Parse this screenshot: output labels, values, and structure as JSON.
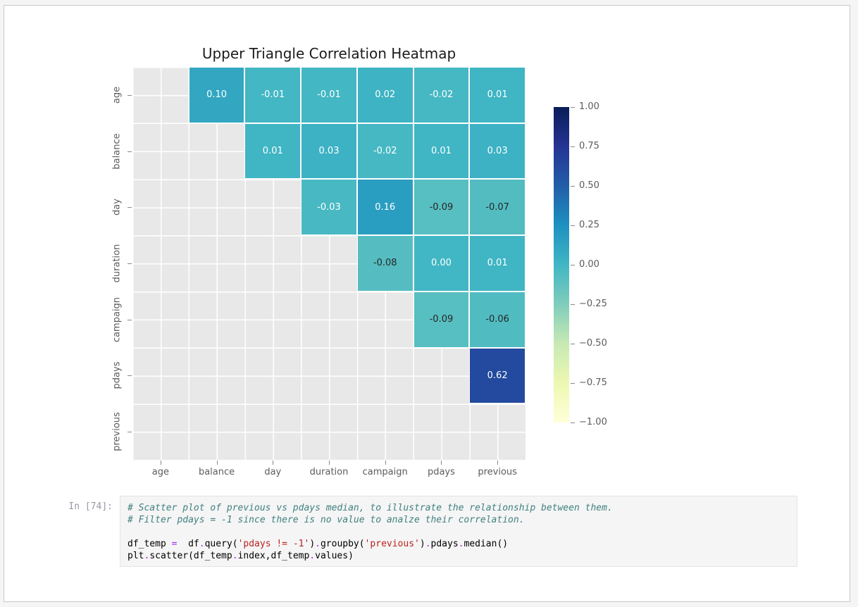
{
  "page": {
    "background": "#f5f5f5",
    "card_background": "#ffffff",
    "card_border": "#c8c8c8"
  },
  "chart_data": {
    "type": "heatmap",
    "title": "Upper Triangle Correlation Heatmap",
    "x_labels": [
      "age",
      "balance",
      "day",
      "duration",
      "campaign",
      "pdays",
      "previous"
    ],
    "y_labels": [
      "age",
      "balance",
      "day",
      "duration",
      "campaign",
      "pdays",
      "previous"
    ],
    "matrix": [
      [
        null,
        0.1,
        -0.01,
        -0.01,
        0.02,
        -0.02,
        0.01
      ],
      [
        null,
        null,
        0.01,
        0.03,
        -0.02,
        0.01,
        0.03
      ],
      [
        null,
        null,
        null,
        -0.03,
        0.16,
        -0.09,
        -0.07
      ],
      [
        null,
        null,
        null,
        null,
        -0.08,
        0.0,
        0.01
      ],
      [
        null,
        null,
        null,
        null,
        null,
        -0.09,
        -0.06
      ],
      [
        null,
        null,
        null,
        null,
        null,
        null,
        0.62
      ],
      [
        null,
        null,
        null,
        null,
        null,
        null,
        null
      ]
    ],
    "vmin": -1.0,
    "vmax": 1.0,
    "colormap_name": "YlGnBu",
    "colormap_anchors": [
      "#ffffd9",
      "#edf8b1",
      "#c7e9b4",
      "#7fcdbb",
      "#41b6c4",
      "#1d91c0",
      "#225ea8",
      "#253494",
      "#081d58"
    ],
    "masked_color": "#e8e8e8",
    "annot_decimals": 2,
    "annot_color_light": "#ffffff",
    "annot_color_dark": "#262626",
    "colorbar_ticks": [
      "1.00",
      "0.75",
      "0.50",
      "0.25",
      "0.00",
      "−0.25",
      "−0.50",
      "−0.75",
      "−1.00"
    ],
    "legend_position": "right",
    "grid": true
  },
  "code_cell": {
    "prompt": "In [74]:",
    "lines": [
      [
        {
          "t": "# Scatter plot of previous vs pdays median, to illustrate the relationship between them.",
          "c": "com"
        }
      ],
      [
        {
          "t": "# Filter pdays = -1 since there is no value to analze their correlation.",
          "c": "com"
        }
      ],
      [],
      [
        {
          "t": "df_temp ",
          "c": "id"
        },
        {
          "t": "=",
          "c": "op"
        },
        {
          "t": "  df",
          "c": "id"
        },
        {
          "t": ".",
          "c": "op"
        },
        {
          "t": "query(",
          "c": "id"
        },
        {
          "t": "'pdays != -1'",
          "c": "str"
        },
        {
          "t": ")",
          "c": "id"
        },
        {
          "t": ".",
          "c": "op"
        },
        {
          "t": "groupby(",
          "c": "id"
        },
        {
          "t": "'previous'",
          "c": "str"
        },
        {
          "t": ")",
          "c": "id"
        },
        {
          "t": ".",
          "c": "op"
        },
        {
          "t": "pdays",
          "c": "id"
        },
        {
          "t": ".",
          "c": "op"
        },
        {
          "t": "median()",
          "c": "id"
        }
      ],
      [
        {
          "t": "plt",
          "c": "id"
        },
        {
          "t": ".",
          "c": "op"
        },
        {
          "t": "scatter(df_temp",
          "c": "id"
        },
        {
          "t": ".",
          "c": "op"
        },
        {
          "t": "index,df_temp",
          "c": "id"
        },
        {
          "t": ".",
          "c": "op"
        },
        {
          "t": "values)",
          "c": "id"
        }
      ]
    ]
  }
}
